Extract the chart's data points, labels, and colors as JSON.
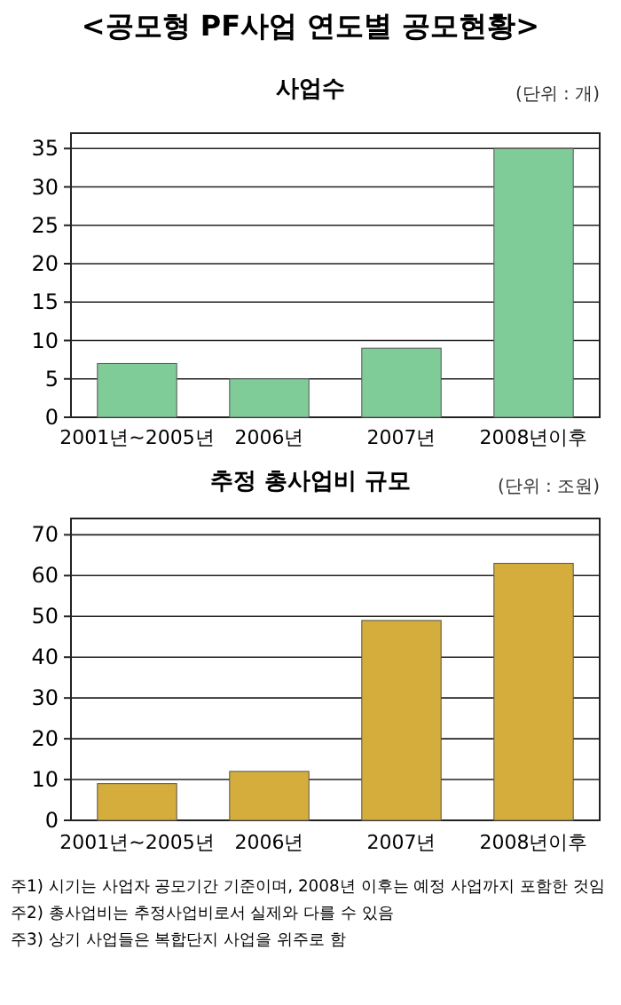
{
  "chart_data": [
    {
      "type": "bar",
      "title": "<공모형 PF사업 연도별 공모현황>",
      "subtitle": "사업수",
      "ylabel": "(단위 : 개)",
      "categories": [
        "2001년~2005년",
        "2006년",
        "2007년",
        "2008년이후"
      ],
      "values": [
        7,
        5,
        9,
        35
      ],
      "color": "#80cc99",
      "ylim": [
        0,
        37
      ],
      "yticks": [
        0,
        5,
        10,
        15,
        20,
        25,
        30,
        35
      ],
      "grid": "y"
    },
    {
      "type": "bar",
      "title": "추정 총사업비 규모",
      "ylabel": "(단위 : 조원)",
      "categories": [
        "2001년~2005년",
        "2006년",
        "2007년",
        "2008년이후"
      ],
      "values": [
        9,
        12,
        49,
        63
      ],
      "color": "#d4ad3c",
      "ylim": [
        0,
        74
      ],
      "yticks": [
        0,
        10,
        20,
        30,
        40,
        50,
        60,
        70
      ],
      "grid": "y",
      "annotations": [
        "주1) 시기는 사업자 공모기간 기준이며, 2008년 이후는 예정 사업까지 포함한 것임",
        "주2) 총사업비는 추정사업비로서 실제와 다를 수 있음",
        "주3) 상기 사업들은 복합단지 사업을 위주로 함"
      ]
    }
  ]
}
